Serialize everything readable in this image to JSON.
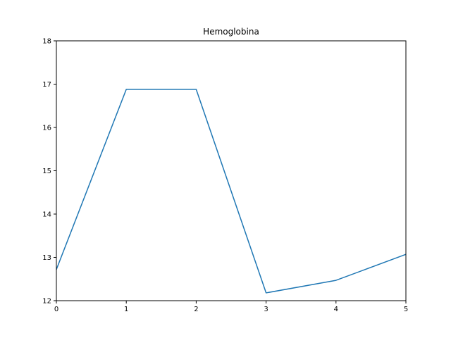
{
  "chart_data": {
    "type": "line",
    "title": "Hemoglobina",
    "xlabel": "",
    "ylabel": "",
    "x": [
      0,
      1,
      2,
      3,
      4,
      5
    ],
    "series": [
      {
        "values": [
          12.72,
          16.88,
          16.88,
          12.18,
          12.47,
          13.07
        ],
        "color": "#1f77b4"
      }
    ],
    "xlim": [
      0,
      5
    ],
    "ylim": [
      12,
      18
    ],
    "xticks": [
      "0",
      "1",
      "2",
      "3",
      "4",
      "5"
    ],
    "yticks": [
      "12",
      "13",
      "14",
      "15",
      "16",
      "17",
      "18"
    ],
    "grid": false,
    "legend": "none"
  }
}
